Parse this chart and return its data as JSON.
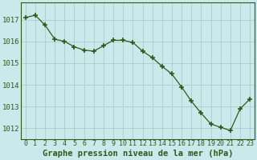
{
  "x": [
    0,
    1,
    2,
    3,
    4,
    5,
    6,
    7,
    8,
    9,
    10,
    11,
    12,
    13,
    14,
    15,
    16,
    17,
    18,
    19,
    20,
    21,
    22,
    23
  ],
  "y": [
    1017.1,
    1017.2,
    1016.75,
    1016.1,
    1016.0,
    1015.75,
    1015.6,
    1015.55,
    1015.8,
    1016.05,
    1016.05,
    1015.95,
    1015.55,
    1015.25,
    1014.85,
    1014.5,
    1013.9,
    1013.25,
    1012.7,
    1012.2,
    1012.05,
    1011.9,
    1012.9,
    1013.35
  ],
  "line_color": "#2d5a1b",
  "marker": "+",
  "marker_size": 5,
  "background_color": "#c8eaea",
  "grid_color": "#a8cece",
  "ylabel_values": [
    1012,
    1013,
    1014,
    1015,
    1016,
    1017
  ],
  "xlabel_values": [
    0,
    1,
    2,
    3,
    4,
    5,
    6,
    7,
    8,
    9,
    10,
    11,
    12,
    13,
    14,
    15,
    16,
    17,
    18,
    19,
    20,
    21,
    22,
    23
  ],
  "xlabel": "Graphe pression niveau de la mer (hPa)",
  "ylim": [
    1011.5,
    1017.8
  ],
  "xlim": [
    -0.5,
    23.5
  ],
  "axis_color": "#2d5a1b",
  "tick_color": "#2d5a1b",
  "label_fontsize": 6.5,
  "xlabel_fontsize": 7.5
}
